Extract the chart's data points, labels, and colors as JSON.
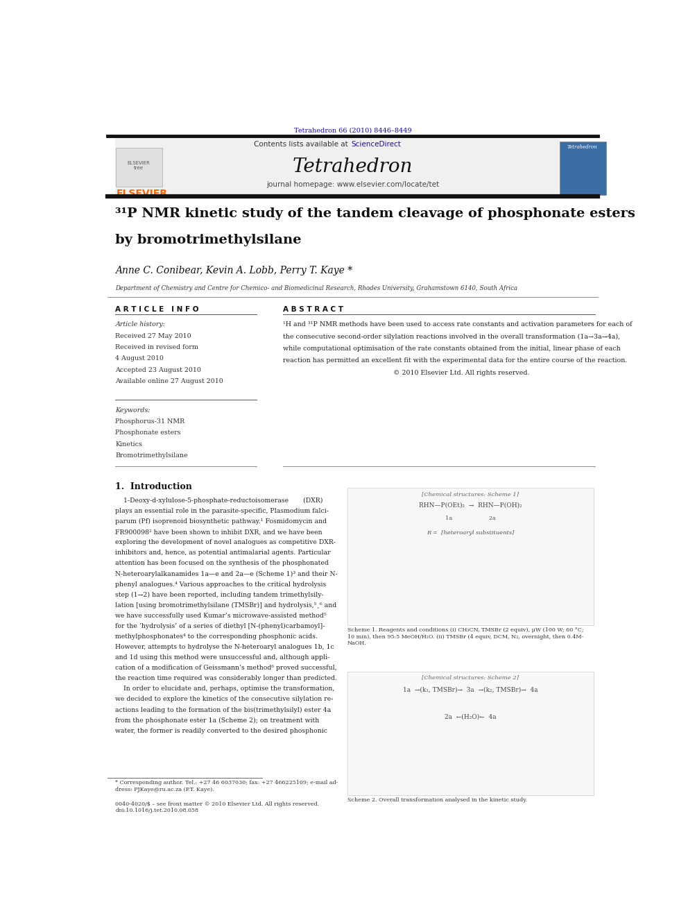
{
  "page_width": 9.92,
  "page_height": 13.23,
  "bg_color": "#ffffff",
  "journal_citation": "Tetrahedron 66 (2010) 8446–8449",
  "journal_citation_color": "#1a0dab",
  "journal_name": "Tetrahedron",
  "contents_text": "Contents lists available at ",
  "sciencedirect_text": "ScienceDirect",
  "sciencedirect_color": "#1a0dab",
  "homepage_text": "journal homepage: www.elsevier.com/locate/tet",
  "elsevier_color": "#ff6600",
  "article_title_line1": "³¹P NMR kinetic study of the tandem cleavage of phosphonate esters",
  "article_title_line2": "by bromotrimethylsilane",
  "authors": "Anne C. Conibear, Kevin A. Lobb, Perry T. Kaye *",
  "affiliation": "Department of Chemistry and Centre for Chemico- and Biomedicinal Research, Rhodes University, Grahamstown 6140, South Africa",
  "article_info_header": "A R T I C L E   I N F O",
  "abstract_header": "A B S T R A C T",
  "article_history_label": "Article history:",
  "received1": "Received 27 May 2010",
  "received2": "Received in revised form",
  "received2b": "4 August 2010",
  "accepted": "Accepted 23 August 2010",
  "available": "Available online 27 August 2010",
  "keywords_label": "Keywords:",
  "kw1": "Phosphorus-31 NMR",
  "kw2": "Phosphonate esters",
  "kw3": "Kinetics",
  "kw4": "Bromotrimethylsilane",
  "intro_header": "1.  Introduction",
  "footnote_text": "* Corresponding author. Tel.: +27 46 6037030; fax: +27 466225109; e-mail ad-\ndress: PJKaye@ru.ac.za (P.T. Kaye).",
  "footer_text": "0040-4020/$ – see front matter © 2010 Elsevier Ltd. All rights reserved.\ndoi:10.1016/j.tet.2010.08.058",
  "header_bg_color": "#f0f0f0",
  "abstract_lines": [
    "¹H and ³¹P NMR methods have been used to access rate constants and activation parameters for each of",
    "the consecutive second-order silylation reactions involved in the overall transformation (1a→3a→4a),",
    "while computational optimisation of the rate constants obtained from the initial, linear phase of each",
    "reaction has permitted an excellent fit with the experimental data for the entire course of the reaction.",
    "                                                     © 2010 Elsevier Ltd. All rights reserved."
  ],
  "intro_lines": [
    "    1-Deoxy-d-xylulose-5-phosphate-reductoisomerase       (DXR)",
    "plays an essential role in the parasite-specific, Plasmodium falci-",
    "parum (Pf) isoprenoid biosynthetic pathway.¹ Fosmidomycin and",
    "FR900098² have been shown to inhibit DXR, and we have been",
    "exploring the development of novel analogues as competitive DXR-",
    "inhibitors and, hence, as potential antimalarial agents. Particular",
    "attention has been focused on the synthesis of the phosphonated",
    "N-heteroarylalkanamides 1a—e and 2a—e (Scheme 1)³ and their N-",
    "phenyl analogues.⁴ Various approaches to the critical hydrolysis",
    "step (1→2) have been reported, including tandem trimethylsily-",
    "lation [using bromotrimethylsilane (TMSBr)] and hydrolysis,⁵¸⁶ and",
    "we have successfully used Kumar’s microwave-assisted method⁵",
    "for the ‘hydrolysis’ of a series of diethyl [N-(phenyl)carbamoyl]-",
    "methylphosphonates⁴ to the corresponding phosphonic acids.",
    "However, attempts to hydrolyse the N-heteroaryl analogues 1b, 1c",
    "and 1d using this method were unsuccessful and, although appli-",
    "cation of a modification of Geissmann’s method⁶ proved successful,",
    "the reaction time required was considerably longer than predicted.",
    "    In order to elucidate and, perhaps, optimise the transformation,",
    "we decided to explore the kinetics of the consecutive silylation re-",
    "actions leading to the formation of the bis(trimethylsilyl) ester 4a",
    "from the phosphonate ester 1a (Scheme 2); on treatment with",
    "water, the former is readily converted to the desired phosphonic"
  ],
  "scheme1_caption": "Scheme 1. Reagents and conditions (i) CH₃CN, TMSBr (2 equiv), μW (100 W; 60 °C;\n10 min), then 95:5 MeOH/H₂O. (ii) TMSBr (4 equiv, DCM, N₂, overnight, then 0.4M-\nNaOH.",
  "scheme2_caption": "Scheme 2. Overall transformation analysed in the kinetic study."
}
